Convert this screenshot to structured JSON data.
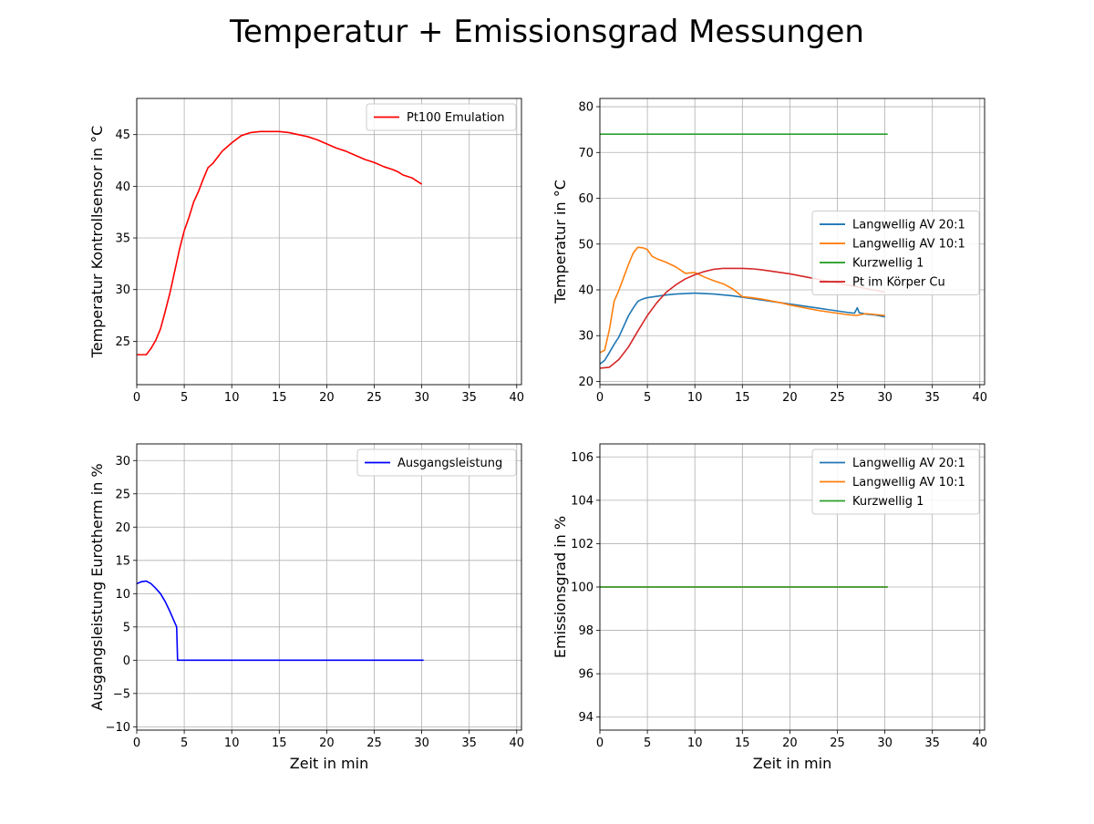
{
  "figure": {
    "title": "Temperatur + Emissionsgrad Messungen"
  },
  "chart_data": [
    {
      "id": "tl",
      "type": "line",
      "xlabel": "",
      "ylabel": "Temperatur Kontrollsensor in °C",
      "xlim": [
        0,
        40.5
      ],
      "ylim": [
        20.8,
        48.5
      ],
      "xticks": [
        0,
        5,
        10,
        15,
        20,
        25,
        30,
        35,
        40
      ],
      "yticks": [
        25,
        30,
        35,
        40,
        45
      ],
      "grid": true,
      "legend": "upper right",
      "series": [
        {
          "name": "Pt100 Emulation",
          "color": "#ff0000",
          "x": [
            0,
            1,
            1.5,
            2,
            2.5,
            3,
            3.5,
            4,
            4.5,
            5,
            5.5,
            6,
            6.5,
            7,
            7.5,
            8,
            8.5,
            9,
            9.5,
            10,
            11,
            12,
            13,
            14,
            15,
            16,
            17,
            18,
            19,
            20,
            21,
            22,
            23,
            24,
            25,
            26,
            27,
            27.5,
            28,
            29,
            30
          ],
          "y": [
            23.7,
            23.7,
            24.3,
            25.1,
            26.2,
            27.9,
            29.7,
            31.8,
            33.9,
            35.7,
            37,
            38.5,
            39.5,
            40.7,
            41.8,
            42.2,
            42.8,
            43.4,
            43.8,
            44.2,
            44.9,
            45.2,
            45.3,
            45.3,
            45.3,
            45.2,
            45.0,
            44.8,
            44.5,
            44.1,
            43.7,
            43.4,
            43.0,
            42.6,
            42.3,
            41.9,
            41.6,
            41.4,
            41.1,
            40.8,
            40.2
          ]
        }
      ]
    },
    {
      "id": "tr",
      "type": "line",
      "xlabel": "",
      "ylabel": "Temperatur in °C",
      "xlim": [
        0,
        40.5
      ],
      "ylim": [
        19.3,
        81.8
      ],
      "xticks": [
        0,
        5,
        10,
        15,
        20,
        25,
        30,
        35,
        40
      ],
      "yticks": [
        20,
        30,
        40,
        50,
        60,
        70,
        80
      ],
      "grid": true,
      "legend": "center right",
      "series": [
        {
          "name": "Langwellig AV 20:1",
          "color": "#1f77b4",
          "x": [
            0,
            0.5,
            1,
            1.5,
            2,
            2.5,
            3,
            3.5,
            4,
            4.5,
            5,
            6,
            7,
            8,
            9,
            10,
            11,
            12,
            13,
            14,
            15,
            16,
            17,
            18,
            19,
            20,
            21,
            22,
            23,
            24,
            25,
            26,
            26.8,
            27.1,
            27.3,
            27.6,
            28,
            29,
            30
          ],
          "y": [
            23.8,
            24.6,
            26.3,
            28.1,
            29.7,
            32,
            34.3,
            36,
            37.5,
            38,
            38.3,
            38.6,
            38.9,
            39.1,
            39.2,
            39.3,
            39.2,
            39.1,
            38.9,
            38.7,
            38.4,
            38.1,
            37.8,
            37.5,
            37.2,
            36.9,
            36.6,
            36.3,
            36.0,
            35.7,
            35.4,
            35.1,
            34.9,
            36.1,
            35.0,
            34.9,
            34.7,
            34.5,
            34.1
          ]
        },
        {
          "name": "Langwellig AV 10:1",
          "color": "#ff7f0e",
          "x": [
            0,
            0.5,
            1,
            1.5,
            2,
            2.5,
            3,
            3.5,
            4,
            4.5,
            5,
            5.5,
            6,
            7,
            8,
            9,
            10,
            11,
            12,
            13,
            14,
            15,
            16,
            17,
            18,
            19,
            20,
            21,
            22,
            23,
            24,
            25,
            26,
            27,
            28,
            29,
            30
          ],
          "y": [
            26.3,
            26.8,
            31.3,
            37.5,
            39.9,
            42.7,
            45.5,
            48,
            49.3,
            49.2,
            48.8,
            47.3,
            46.8,
            46.0,
            45.0,
            43.6,
            43.8,
            42.8,
            42.0,
            41.3,
            40.2,
            38.5,
            38.3,
            38.0,
            37.6,
            37.2,
            36.7,
            36.3,
            35.9,
            35.5,
            35.2,
            34.9,
            34.6,
            34.4,
            34.8,
            34.6,
            34.4
          ]
        },
        {
          "name": "Kurzwellig 1",
          "color": "#2ca02c",
          "x": [
            0,
            30.3
          ],
          "y": [
            74,
            74
          ]
        },
        {
          "name": "Pt im Körper Cu",
          "color": "#d62728",
          "x": [
            0,
            1,
            2,
            3,
            4,
            5,
            6,
            7,
            8,
            9,
            10,
            11,
            12,
            13,
            14,
            15,
            16,
            17,
            18,
            19,
            20,
            21,
            22,
            23,
            24,
            25,
            26,
            27,
            28,
            29,
            30
          ],
          "y": [
            22.9,
            23.1,
            24.8,
            27.5,
            31.0,
            34.4,
            37.2,
            39.5,
            41.1,
            42.4,
            43.3,
            44.0,
            44.5,
            44.7,
            44.7,
            44.7,
            44.6,
            44.4,
            44.1,
            43.8,
            43.5,
            43.1,
            42.7,
            42.3,
            41.9,
            41.5,
            41.1,
            40.7,
            40.3,
            39.9,
            39.5
          ]
        }
      ]
    },
    {
      "id": "bl",
      "type": "line",
      "xlabel": "Zeit in min",
      "ylabel": "Ausgangsleistung Eurotherm in %",
      "xlim": [
        0,
        40.5
      ],
      "ylim": [
        -10.5,
        32.5
      ],
      "xticks": [
        0,
        5,
        10,
        15,
        20,
        25,
        30,
        35,
        40
      ],
      "yticks": [
        -10,
        -5,
        0,
        5,
        10,
        15,
        20,
        25,
        30
      ],
      "grid": true,
      "legend": "upper right",
      "series": [
        {
          "name": "Ausgangsleistung",
          "color": "#0000ff",
          "x": [
            0,
            0.5,
            1,
            1.5,
            2,
            2.5,
            3,
            3.5,
            4.2,
            4.3,
            4.5,
            10,
            20,
            30.2
          ],
          "y": [
            11.5,
            11.8,
            11.9,
            11.5,
            10.8,
            10.0,
            8.8,
            7.3,
            5.0,
            0.0,
            0.0,
            0.0,
            0.0,
            0.0
          ]
        }
      ]
    },
    {
      "id": "br",
      "type": "line",
      "xlabel": "Zeit in min",
      "ylabel": "Emissionsgrad in %",
      "xlim": [
        0,
        40.5
      ],
      "ylim": [
        93.4,
        106.6
      ],
      "xticks": [
        0,
        5,
        10,
        15,
        20,
        25,
        30,
        35,
        40
      ],
      "yticks": [
        94,
        96,
        98,
        100,
        102,
        104,
        106
      ],
      "grid": true,
      "legend": "upper right",
      "series": [
        {
          "name": "Langwellig AV 20:1",
          "color": "#1f77b4",
          "x": [
            0,
            30.3
          ],
          "y": [
            100,
            100
          ]
        },
        {
          "name": "Langwellig AV 10:1",
          "color": "#ff7f0e",
          "x": [
            0,
            30.3
          ],
          "y": [
            100,
            100
          ]
        },
        {
          "name": "Kurzwellig 1",
          "color": "#2ca02c",
          "x": [
            0,
            30.3
          ],
          "y": [
            100,
            100
          ]
        }
      ]
    }
  ]
}
